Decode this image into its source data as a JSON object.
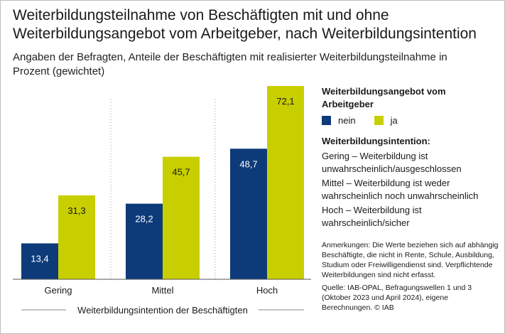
{
  "title": "Weiterbildungsteilnahme von Beschäftigten mit und ohne Weiterbildungsangebot vom Arbeitgeber, nach Weiterbildungsintention",
  "subtitle": "Angaben der Befragten, Anteile der Beschäftigten mit realisierter Weiterbildungsteilnahme in Prozent (gewichtet)",
  "legend": {
    "title": "Weiterbildungsangebot vom Arbeitgeber",
    "items": [
      {
        "label": "nein",
        "color": "#0d3b7a"
      },
      {
        "label": "ja",
        "color": "#c8cf00"
      }
    ]
  },
  "intentions": {
    "title": "Weiterbildungsintention:",
    "items": [
      "Gering – Weiterbildung ist unwahrscheinlich/ausgeschlossen",
      "Mittel – Weiterbildung ist weder wahrscheinlich noch unwahrscheinlich",
      "Hoch – Weiterbildung ist wahrscheinlich/sicher"
    ]
  },
  "notes": "Anmerkungen: Die Werte beziehen sich auf abhängig Beschäftigte, die nicht in Rente, Schule, Ausbildung, Studium oder Freiwilligendienst sind. Verpflichtende Weiterbildungen sind nicht erfasst.",
  "source": "Quelle: IAB-OPAL, Befragungswellen 1 und 3 (Oktober 2023 und April 2024), eigene Berechnungen. © IAB",
  "chart_data": {
    "type": "bar",
    "title": "Weiterbildungsteilnahme von Beschäftigten mit und ohne Weiterbildungsangebot vom Arbeitgeber, nach Weiterbildungsintention",
    "xlabel": "Weiterbildungsintention der Beschäftigten",
    "ylabel": "",
    "ylim": [
      0,
      72.1
    ],
    "categories": [
      "Gering",
      "Mittel",
      "Hoch"
    ],
    "series": [
      {
        "name": "nein",
        "color": "#0d3b7a",
        "values": [
          13.4,
          28.2,
          48.7
        ],
        "labels": [
          "13,4",
          "28,2",
          "48,7"
        ]
      },
      {
        "name": "ja",
        "color": "#c8cf00",
        "values": [
          31.3,
          45.7,
          72.1
        ],
        "labels": [
          "31,3",
          "45,7",
          "72,1"
        ]
      }
    ]
  }
}
